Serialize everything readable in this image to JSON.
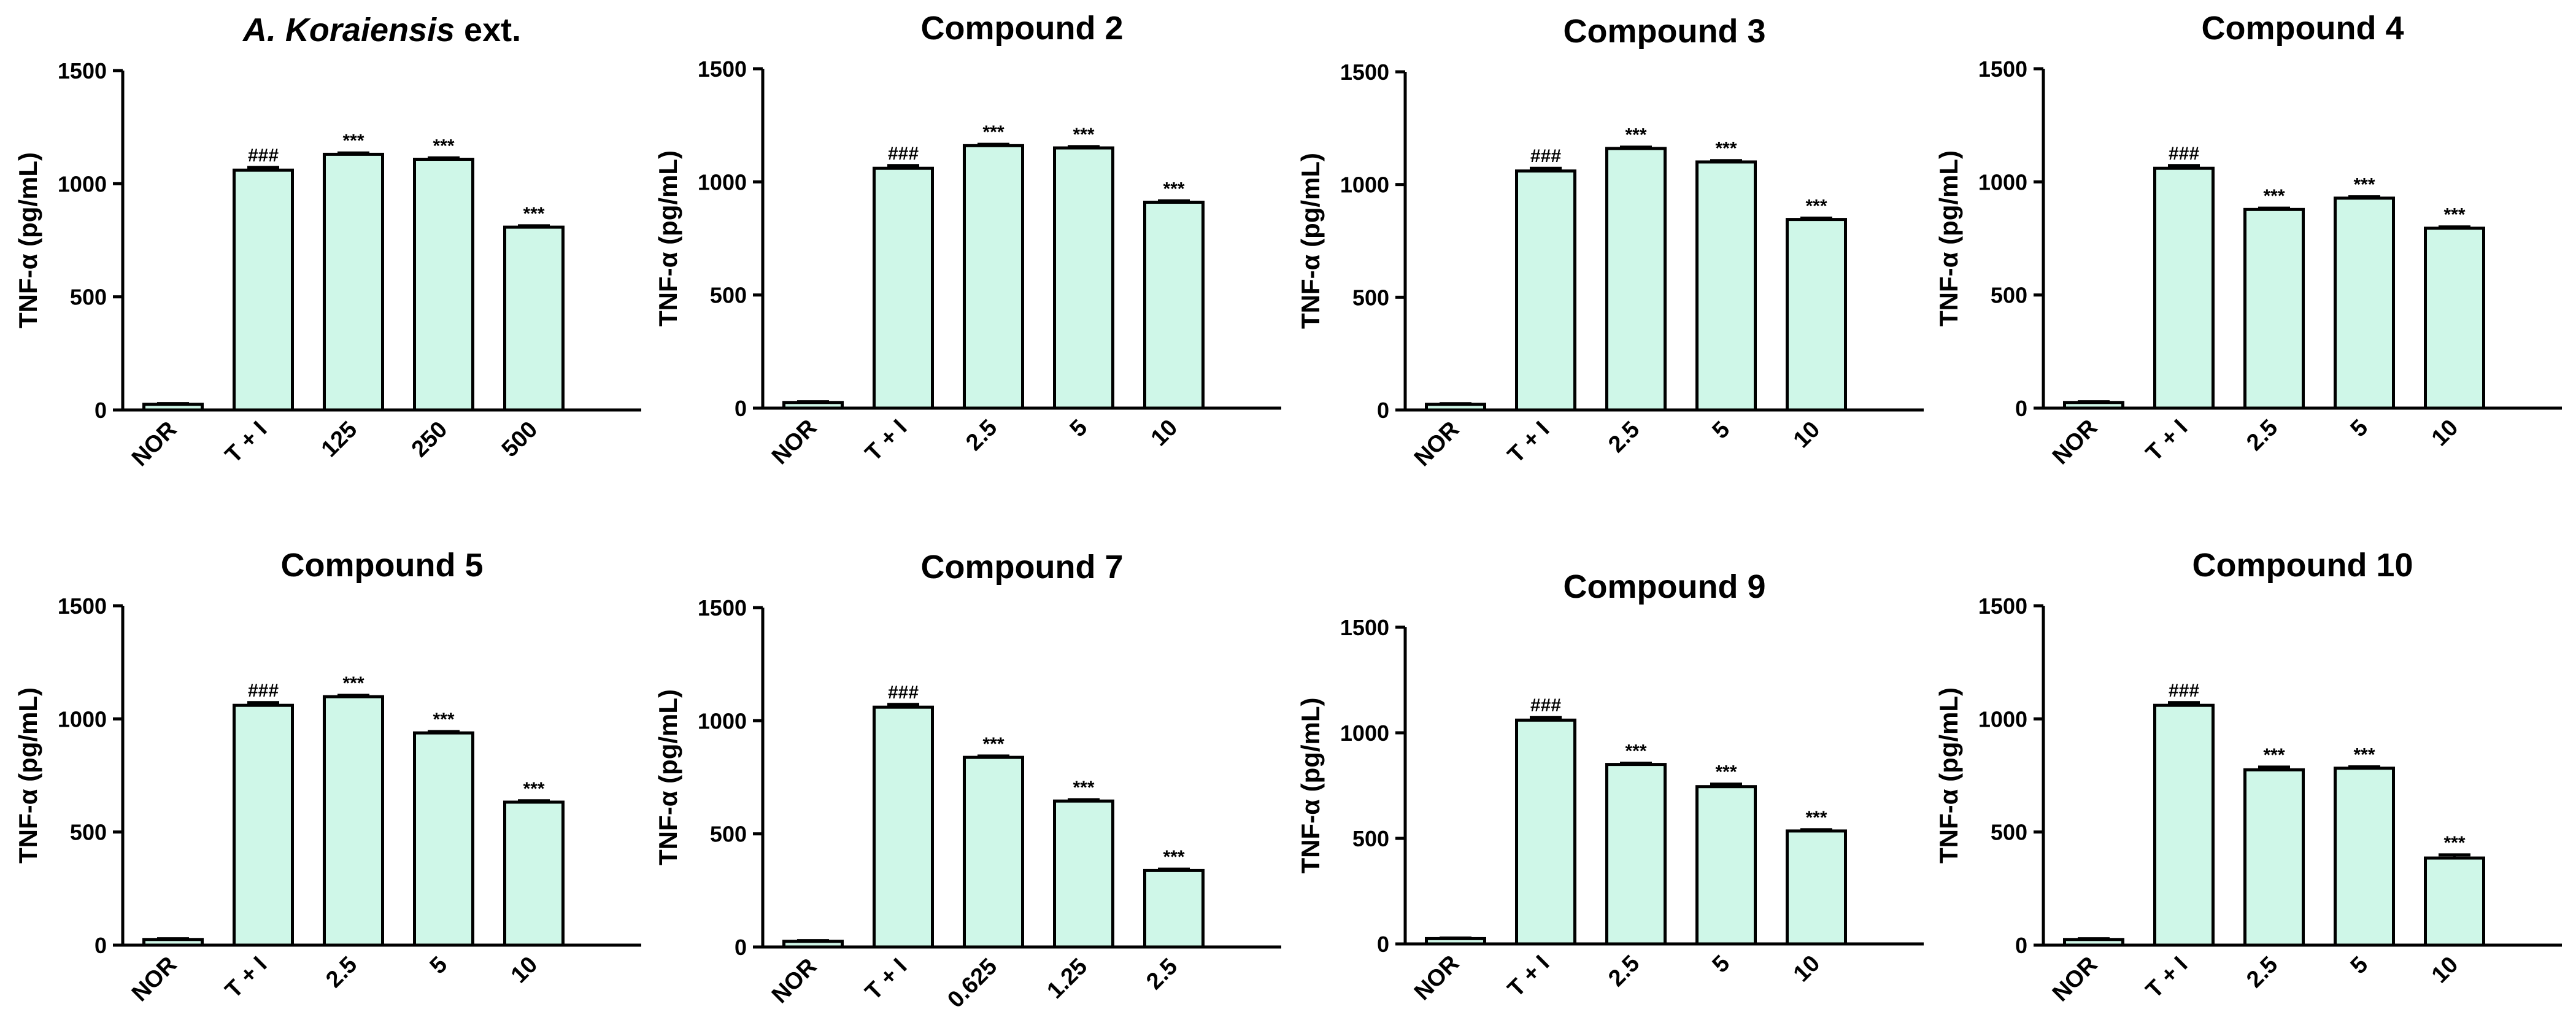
{
  "colors": {
    "bar_fill": "#cff7e8",
    "bar_stroke": "#000000",
    "axis": "#000000"
  },
  "chart_data": [
    {
      "type": "bar",
      "title": "A. Koraiensis ext.",
      "title_italic_part": "A. Koraiensis",
      "title_plain_part": " ext.",
      "ylabel": "TNF-α (pg/mL)",
      "ylim": [
        0,
        1500
      ],
      "yticks": [
        "0",
        "500",
        "1000",
        "1500"
      ],
      "categories": [
        "NOR",
        "T + I",
        "125",
        "250",
        "500"
      ],
      "values": [
        25,
        1060,
        1130,
        1108,
        808
      ],
      "errors": [
        3,
        12,
        6,
        6,
        6
      ],
      "annotations": [
        "",
        "###",
        "***",
        "***",
        "***"
      ]
    },
    {
      "type": "bar",
      "title": "Compound 2",
      "ylabel": "TNF-α (pg/mL)",
      "ylim": [
        0,
        1500
      ],
      "yticks": [
        "0",
        "500",
        "1000",
        "1500"
      ],
      "categories": [
        "NOR",
        "T + I",
        "2.5",
        "5",
        "10"
      ],
      "values": [
        25,
        1060,
        1160,
        1150,
        910
      ],
      "errors": [
        3,
        12,
        6,
        6,
        6
      ],
      "annotations": [
        "",
        "###",
        "***",
        "***",
        "***"
      ]
    },
    {
      "type": "bar",
      "title": "Compound 3",
      "ylabel": "TNF-α (pg/mL)",
      "ylim": [
        0,
        1500
      ],
      "yticks": [
        "0",
        "500",
        "1000",
        "1500"
      ],
      "categories": [
        "NOR",
        "T + I",
        "2.5",
        "5",
        "10"
      ],
      "values": [
        25,
        1060,
        1160,
        1100,
        845
      ],
      "errors": [
        3,
        12,
        6,
        6,
        6
      ],
      "annotations": [
        "",
        "###",
        "***",
        "***",
        "***"
      ]
    },
    {
      "type": "bar",
      "title": "Compound 4",
      "ylabel": "TNF-α (pg/mL)",
      "ylim": [
        0,
        1500
      ],
      "yticks": [
        "0",
        "500",
        "1000",
        "1500"
      ],
      "categories": [
        "NOR",
        "T + I",
        "2.5",
        "5",
        "10"
      ],
      "values": [
        25,
        1060,
        878,
        928,
        795
      ],
      "errors": [
        3,
        12,
        6,
        6,
        6
      ],
      "annotations": [
        "",
        "###",
        "***",
        "***",
        "***"
      ]
    },
    {
      "type": "bar",
      "title": "Compound 5",
      "ylabel": "TNF-α (pg/mL)",
      "ylim": [
        0,
        1500
      ],
      "yticks": [
        "0",
        "500",
        "1000",
        "1500"
      ],
      "categories": [
        "NOR",
        "T + I",
        "2.5",
        "5",
        "10"
      ],
      "values": [
        25,
        1060,
        1098,
        938,
        632
      ],
      "errors": [
        3,
        12,
        6,
        6,
        6
      ],
      "annotations": [
        "",
        "###",
        "***",
        "***",
        "***"
      ]
    },
    {
      "type": "bar",
      "title": "Compound 7",
      "ylabel": "TNF-α (pg/mL)",
      "ylim": [
        0,
        1500
      ],
      "yticks": [
        "0",
        "500",
        "1000",
        "1500"
      ],
      "categories": [
        "NOR",
        "T + I",
        "0.625",
        "1.25",
        "2.5"
      ],
      "values": [
        25,
        1060,
        838,
        645,
        338
      ],
      "errors": [
        3,
        12,
        6,
        6,
        6
      ],
      "annotations": [
        "",
        "###",
        "***",
        "***",
        "***"
      ]
    },
    {
      "type": "bar",
      "title": "Compound 9",
      "ylabel": "TNF-α (pg/mL)",
      "ylim": [
        0,
        1500
      ],
      "yticks": [
        "0",
        "500",
        "1000",
        "1500"
      ],
      "categories": [
        "NOR",
        "T + I",
        "2.5",
        "5",
        "10"
      ],
      "values": [
        25,
        1060,
        850,
        745,
        535
      ],
      "errors": [
        3,
        12,
        6,
        12,
        6
      ],
      "annotations": [
        "",
        "###",
        "***",
        "***",
        "***"
      ]
    },
    {
      "type": "bar",
      "title": "Compound 10",
      "ylabel": "TNF-α (pg/mL)",
      "ylim": [
        0,
        1500
      ],
      "yticks": [
        "0",
        "500",
        "1000",
        "1500"
      ],
      "categories": [
        "NOR",
        "T + I",
        "2.5",
        "5",
        "10"
      ],
      "values": [
        25,
        1060,
        775,
        782,
        385
      ],
      "errors": [
        3,
        12,
        12,
        6,
        14
      ],
      "annotations": [
        "",
        "###",
        "***",
        "***",
        "***"
      ]
    }
  ]
}
